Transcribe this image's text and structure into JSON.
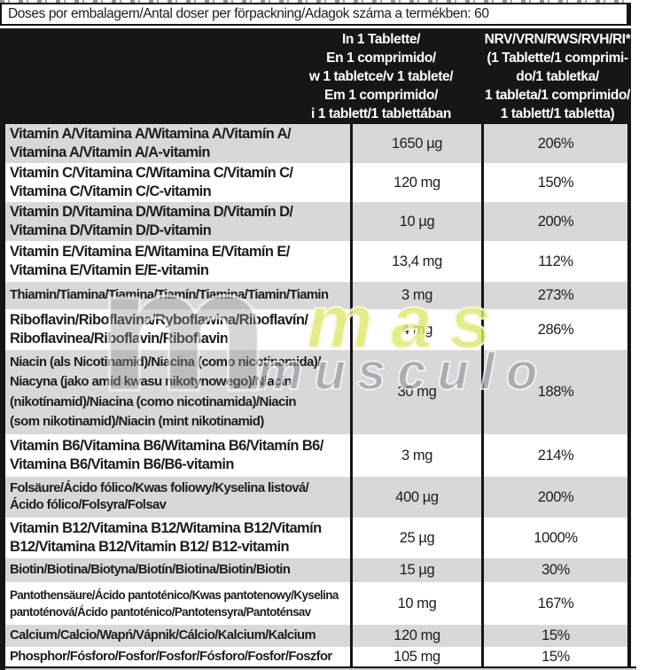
{
  "top_bar": {
    "text": "Doses por embalagem/Antal doser per förpackning/Adagok száma a termékben: 60"
  },
  "header": {
    "amount_per_tablet": "In 1 Tablette/\nEn 1 comprimido/\nw 1 tabletce/v 1 tablete/\nEm 1 comprimido/\ni 1 tablett/1 tablettában",
    "nrv": "NRV/VRN/RWS/RVH/RI*\n(1 Tablette/1 comprimi-\ndo/1 tabletka/\n1 tableta/1 comprimido/\n1 tablett/1 tabletta)"
  },
  "table": {
    "rows": [
      {
        "name": "Vitamin A/Vitamina A/Witamina A/Vitamín A/\nVitamina A/Vitamin A/A-vitamin",
        "amount": "1650 µg",
        "nrv": "206%"
      },
      {
        "name": "Vitamin C/Vitamina C/Witamina C/Vitamín C/\nVitamina C/Vitamin C/C-vitamin",
        "amount": "120 mg",
        "nrv": "150%"
      },
      {
        "name": "Vitamin D/Vitamina D/Witamina D/Vitamín D/\nVitamina D/Vitamin D/D-vitamin",
        "amount": "10 µg",
        "nrv": "200%"
      },
      {
        "name": "Vitamin E/Vitamina E/Witamina E/Vitamín E/\nVitamina E/Vitamin E/E-vitamin",
        "amount": "13,4 mg",
        "nrv": "112%"
      },
      {
        "name": "Thiamin/Tiamina/Tiamina/Tiamín/Tiamina/Tiamin/Tiamin",
        "amount": "3 mg",
        "nrv": "273%"
      },
      {
        "name": "Riboflavin/Riboflavina/Ryboflawina/Riboflavín/\nRiboflavinea/Riboflavin/Riboflavin",
        "amount": "4 mg",
        "nrv": "286%"
      },
      {
        "name": "Niacin (als Nicotinamid)/Niacina (como nicotinamida)/\nNiacyna (jako amid kwasu nikotynowego)/Niacín\n(nikotínamid)/Niacina (como nicotinamida)/Niacin\n(som nikotinamid)/Niacin (mint nikotinamid)",
        "amount": "30 mg",
        "nrv": "188%"
      },
      {
        "name": "Vitamin B6/Vitamina B6/Witamina B6/Vitamín B6/\nVitamina B6/Vitamin B6/B6-vitamin",
        "amount": "3 mg",
        "nrv": "214%"
      },
      {
        "name": "Folsäure/Ácido fólico/Kwas foliowy/Kyselina listová/\nÁcido fólico/Folsyra/Folsav",
        "amount": "400 µg",
        "nrv": "200%"
      },
      {
        "name": "Vitamin B12/Vitamina B12/Witamina B12/Vitamín\nB12/Vitamina B12/Vitamin B12/ B12-vitamin",
        "amount": "25 µg",
        "nrv": "1000%"
      },
      {
        "name": "Biotin/Biotina/Biotyna/Biotín/Biotina/Biotin/Biotin",
        "amount": "15 µg",
        "nrv": "30%"
      },
      {
        "name": "Pantothensäure/Ácido pantoténico/Kwas pantotenowy/Kyselina\npantoténová/Ácido pantoténico/Pantotensyra/Pantoténsav",
        "amount": "10 mg",
        "nrv": "167%"
      },
      {
        "name": "Calcium/Calcio/Wapń/Vápnik/Cálcio/Kalcium/Kalcium",
        "amount": "120 mg",
        "nrv": "15%"
      },
      {
        "name": "Phosphor/Fósforo/Fosfor/Fosfor/Fósforo/Fosfor/Foszfor",
        "amount": "105 mg",
        "nrv": "15%"
      }
    ]
  },
  "watermark": {
    "logo_glyph": "m",
    "word1": "mas",
    "word2": "musculo",
    "word1_color": "#dee76c",
    "word2_color": "#8a8a96"
  },
  "colors": {
    "row_gray": "#d8d8d8",
    "header_black": "#161616",
    "text": "#1d1d1b"
  }
}
